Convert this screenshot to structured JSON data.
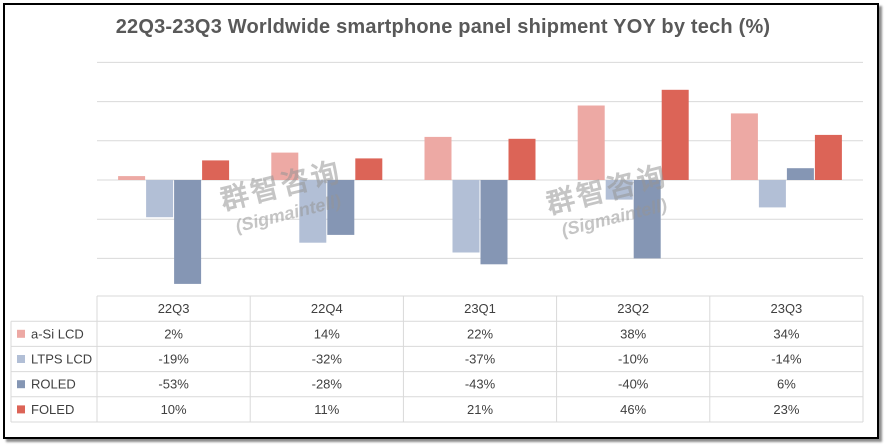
{
  "chart_data": {
    "type": "bar",
    "title": "22Q3-23Q3 Worldwide smartphone panel shipment YOY by tech (%)",
    "categories": [
      "22Q3",
      "22Q4",
      "23Q1",
      "23Q2",
      "23Q3"
    ],
    "series": [
      {
        "name": "a-Si LCD",
        "color": "#eda9a4",
        "values": [
          2,
          14,
          22,
          38,
          34
        ],
        "labels": [
          "2%",
          "14%",
          "22%",
          "38%",
          "34%"
        ]
      },
      {
        "name": "LTPS LCD",
        "color": "#b2bfd6",
        "values": [
          -19,
          -32,
          -37,
          -10,
          -14
        ],
        "labels": [
          "-19%",
          "-32%",
          "-37%",
          "-10%",
          "-14%"
        ]
      },
      {
        "name": "ROLED",
        "color": "#8596b4",
        "values": [
          -53,
          -28,
          -43,
          -40,
          6
        ],
        "labels": [
          "-53%",
          "-28%",
          "-43%",
          "-40%",
          "6%"
        ]
      },
      {
        "name": "FOLED",
        "color": "#dc6457",
        "values": [
          10,
          11,
          21,
          46,
          23
        ],
        "labels": [
          "10%",
          "11%",
          "21%",
          "46%",
          "23%"
        ]
      }
    ],
    "ylim": [
      -60,
      60
    ],
    "gridlines": [
      -40,
      -20,
      0,
      20,
      40,
      60
    ],
    "grid": true,
    "legend": "data-table"
  },
  "watermarks": [
    {
      "cn": "群智咨询",
      "en": "(Sigmaintell)"
    },
    {
      "cn": "群智咨询",
      "en": "(Sigmaintell)"
    }
  ]
}
